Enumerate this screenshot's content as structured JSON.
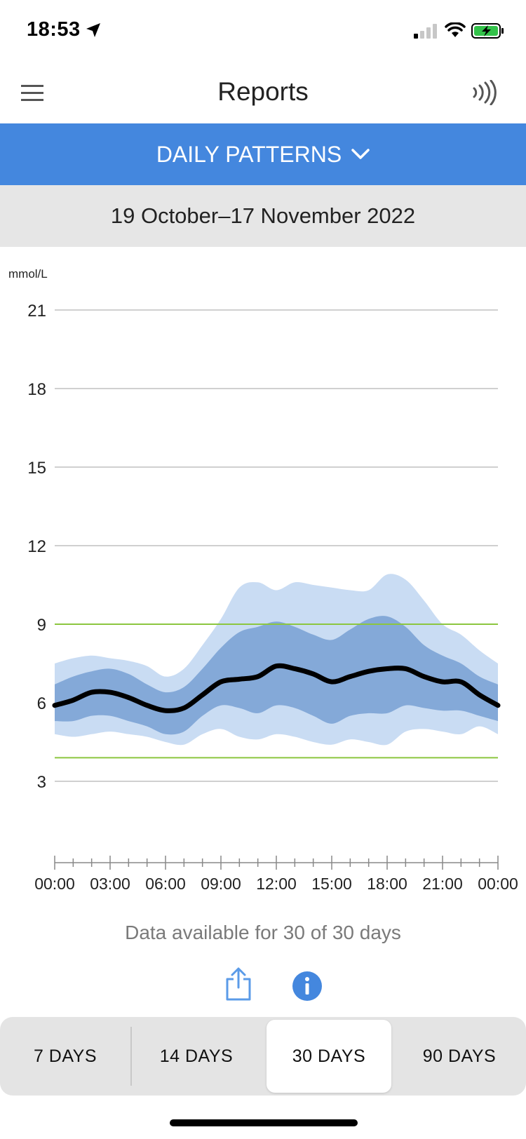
{
  "status_bar": {
    "time": "18:53",
    "icons": [
      "location-arrow-icon",
      "cellular-signal-icon",
      "wifi-icon",
      "battery-charging-icon"
    ]
  },
  "nav": {
    "title": "Reports",
    "menu_icon": "hamburger-menu-icon",
    "scan_icon": "nfc-scan-icon"
  },
  "report_selector": {
    "label": "DAILY PATTERNS",
    "icon": "chevron-down-icon"
  },
  "date_range": "19 October–17 November 2022",
  "colors": {
    "accent": "#4487de",
    "band_outer": "#c9dcf3",
    "band_inner": "#84a9d8",
    "median": "#000000",
    "target_line": "#8cc63f",
    "grid": "#b5b5b5"
  },
  "chart_data": {
    "type": "area",
    "ylabel": "mmol/L",
    "yticks": [
      3,
      6,
      9,
      12,
      15,
      18,
      21
    ],
    "ylim": [
      0,
      21
    ],
    "xticks": [
      "00:00",
      "03:00",
      "06:00",
      "09:00",
      "12:00",
      "15:00",
      "18:00",
      "21:00",
      "00:00"
    ],
    "xlim_hours": [
      0,
      24
    ],
    "target_range": [
      3.9,
      9.0
    ],
    "grid": true,
    "x_hours": [
      0,
      1,
      2,
      3,
      4,
      5,
      6,
      7,
      8,
      9,
      10,
      11,
      12,
      13,
      14,
      15,
      16,
      17,
      18,
      19,
      20,
      21,
      22,
      23,
      24
    ],
    "series": [
      {
        "values": [
          7.5,
          7.7,
          7.8,
          7.7,
          7.6,
          7.4,
          7.0,
          7.3,
          8.2,
          9.2,
          10.4,
          10.6,
          10.3,
          10.6,
          10.5,
          10.4,
          10.3,
          10.3,
          10.9,
          10.7,
          9.9,
          9.0,
          8.6,
          8.0,
          7.5
        ]
      },
      {
        "values": [
          6.7,
          7.0,
          7.2,
          7.3,
          7.1,
          6.7,
          6.4,
          6.6,
          7.3,
          8.1,
          8.7,
          8.9,
          9.1,
          8.9,
          8.6,
          8.4,
          8.8,
          9.2,
          9.3,
          8.9,
          8.2,
          7.8,
          7.5,
          7.0,
          6.7
        ]
      },
      {
        "values": [
          5.9,
          6.1,
          6.4,
          6.4,
          6.2,
          5.9,
          5.7,
          5.8,
          6.3,
          6.8,
          6.9,
          7.0,
          7.4,
          7.3,
          7.1,
          6.8,
          7.0,
          7.2,
          7.3,
          7.3,
          7.0,
          6.8,
          6.8,
          6.3,
          5.9
        ]
      },
      {
        "values": [
          5.3,
          5.3,
          5.5,
          5.5,
          5.3,
          5.1,
          4.8,
          4.9,
          5.5,
          5.9,
          5.8,
          5.6,
          5.9,
          5.8,
          5.5,
          5.2,
          5.5,
          5.6,
          5.6,
          5.9,
          5.8,
          5.7,
          5.7,
          5.5,
          5.3
        ]
      },
      {
        "values": [
          4.8,
          4.7,
          4.8,
          4.9,
          4.8,
          4.7,
          4.5,
          4.4,
          4.8,
          5.0,
          4.7,
          4.6,
          4.8,
          4.7,
          4.5,
          4.4,
          4.6,
          4.5,
          4.4,
          4.9,
          5.0,
          4.9,
          4.8,
          5.1,
          4.8
        ]
      }
    ]
  },
  "data_note": "Data available for 30 of 30 days",
  "actions": {
    "share_icon": "share-icon",
    "info_icon": "info-icon"
  },
  "range_tabs": {
    "items": [
      {
        "label": "7 DAYS"
      },
      {
        "label": "14 DAYS"
      },
      {
        "label": "30 DAYS"
      },
      {
        "label": "90 DAYS"
      }
    ],
    "selected": "30 DAYS"
  }
}
